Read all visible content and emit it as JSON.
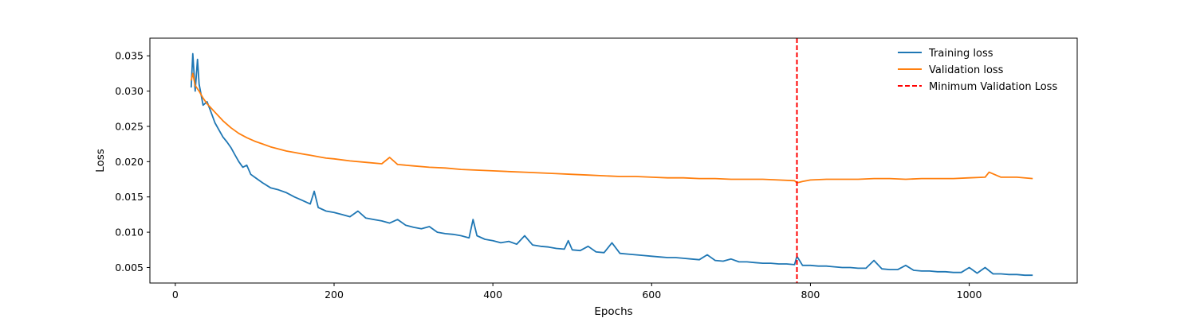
{
  "chart_data": {
    "type": "line",
    "title": "",
    "xlabel": "Epochs",
    "ylabel": "Loss",
    "xlim": [
      -32,
      1136
    ],
    "ylim": [
      0.0028,
      0.0375
    ],
    "xticks": [
      0,
      200,
      400,
      600,
      800,
      1000
    ],
    "yticks": [
      0.005,
      0.01,
      0.015,
      0.02,
      0.025,
      0.03,
      0.035
    ],
    "xtick_labels": [
      "0",
      "200",
      "400",
      "600",
      "800",
      "1000"
    ],
    "ytick_labels": [
      "0.005",
      "0.010",
      "0.015",
      "0.020",
      "0.025",
      "0.030",
      "0.035"
    ],
    "grid": false,
    "legend_position": "top-right",
    "series": [
      {
        "name": "Training loss",
        "color": "#1f77b4",
        "x": [
          20,
          22,
          25,
          28,
          30,
          35,
          40,
          45,
          50,
          55,
          60,
          65,
          70,
          75,
          80,
          85,
          90,
          95,
          100,
          110,
          120,
          130,
          140,
          150,
          160,
          170,
          175,
          180,
          190,
          200,
          210,
          220,
          230,
          240,
          250,
          260,
          270,
          280,
          290,
          300,
          310,
          320,
          330,
          340,
          350,
          360,
          370,
          375,
          380,
          390,
          400,
          410,
          420,
          430,
          440,
          450,
          460,
          470,
          480,
          490,
          495,
          500,
          510,
          520,
          530,
          540,
          550,
          560,
          570,
          580,
          590,
          600,
          610,
          620,
          630,
          640,
          650,
          660,
          670,
          680,
          690,
          700,
          710,
          720,
          730,
          740,
          750,
          760,
          770,
          780,
          783,
          790,
          800,
          810,
          820,
          830,
          840,
          850,
          860,
          870,
          880,
          890,
          900,
          910,
          920,
          930,
          940,
          950,
          960,
          970,
          980,
          990,
          1000,
          1010,
          1020,
          1030,
          1040,
          1050,
          1060,
          1070,
          1080
        ],
        "y": [
          0.0305,
          0.0353,
          0.03,
          0.0345,
          0.031,
          0.028,
          0.0285,
          0.027,
          0.0255,
          0.0245,
          0.0235,
          0.0228,
          0.022,
          0.021,
          0.02,
          0.0192,
          0.0195,
          0.0182,
          0.0178,
          0.017,
          0.0163,
          0.016,
          0.0156,
          0.015,
          0.0145,
          0.014,
          0.0158,
          0.0135,
          0.013,
          0.0128,
          0.0125,
          0.0122,
          0.013,
          0.012,
          0.0118,
          0.0116,
          0.0113,
          0.0118,
          0.011,
          0.0107,
          0.0105,
          0.0108,
          0.01,
          0.0098,
          0.0097,
          0.0095,
          0.0092,
          0.0118,
          0.0095,
          0.009,
          0.0088,
          0.0085,
          0.0087,
          0.0083,
          0.0095,
          0.0082,
          0.008,
          0.0079,
          0.0077,
          0.0076,
          0.0088,
          0.0075,
          0.0074,
          0.008,
          0.0072,
          0.0071,
          0.0085,
          0.007,
          0.0069,
          0.0068,
          0.0067,
          0.0066,
          0.0065,
          0.0064,
          0.0064,
          0.0063,
          0.0062,
          0.0061,
          0.0068,
          0.006,
          0.0059,
          0.0062,
          0.0058,
          0.0058,
          0.0057,
          0.0056,
          0.0056,
          0.0055,
          0.0055,
          0.0054,
          0.0066,
          0.0053,
          0.0053,
          0.0052,
          0.0052,
          0.0051,
          0.005,
          0.005,
          0.0049,
          0.0049,
          0.006,
          0.0048,
          0.0047,
          0.0047,
          0.0053,
          0.0046,
          0.0045,
          0.0045,
          0.0044,
          0.0044,
          0.0043,
          0.0043,
          0.005,
          0.0042,
          0.005,
          0.0041,
          0.0041,
          0.004,
          0.004,
          0.0039,
          0.0039
        ]
      },
      {
        "name": "Validation loss",
        "color": "#ff7f0e",
        "x": [
          20,
          22,
          25,
          30,
          35,
          40,
          45,
          50,
          55,
          60,
          70,
          80,
          90,
          100,
          110,
          120,
          130,
          140,
          150,
          160,
          170,
          180,
          190,
          200,
          220,
          240,
          260,
          270,
          280,
          300,
          320,
          340,
          360,
          380,
          400,
          420,
          440,
          460,
          480,
          500,
          520,
          540,
          560,
          580,
          600,
          620,
          640,
          660,
          680,
          700,
          720,
          740,
          760,
          780,
          783,
          790,
          800,
          820,
          840,
          860,
          880,
          900,
          920,
          940,
          960,
          980,
          1000,
          1020,
          1025,
          1040,
          1060,
          1080
        ],
        "y": [
          0.0315,
          0.0325,
          0.0308,
          0.03,
          0.029,
          0.0282,
          0.0276,
          0.027,
          0.0264,
          0.0258,
          0.0248,
          0.024,
          0.0234,
          0.0229,
          0.0225,
          0.0221,
          0.0218,
          0.0215,
          0.0213,
          0.0211,
          0.0209,
          0.0207,
          0.0205,
          0.0204,
          0.0201,
          0.0199,
          0.0197,
          0.0206,
          0.0196,
          0.0194,
          0.0192,
          0.0191,
          0.0189,
          0.0188,
          0.0187,
          0.0186,
          0.0185,
          0.0184,
          0.0183,
          0.0182,
          0.0181,
          0.018,
          0.0179,
          0.0179,
          0.0178,
          0.0177,
          0.0177,
          0.0176,
          0.0176,
          0.0175,
          0.0175,
          0.0175,
          0.0174,
          0.0173,
          0.017,
          0.0172,
          0.0174,
          0.0175,
          0.0175,
          0.0175,
          0.0176,
          0.0176,
          0.0175,
          0.0176,
          0.0176,
          0.0176,
          0.0177,
          0.0178,
          0.0185,
          0.0178,
          0.0178,
          0.0176
        ]
      }
    ],
    "annotations": [
      {
        "type": "vline",
        "x": 783,
        "name": "Minimum Validation Loss",
        "color": "#ff0000",
        "style": "dashed"
      }
    ]
  }
}
